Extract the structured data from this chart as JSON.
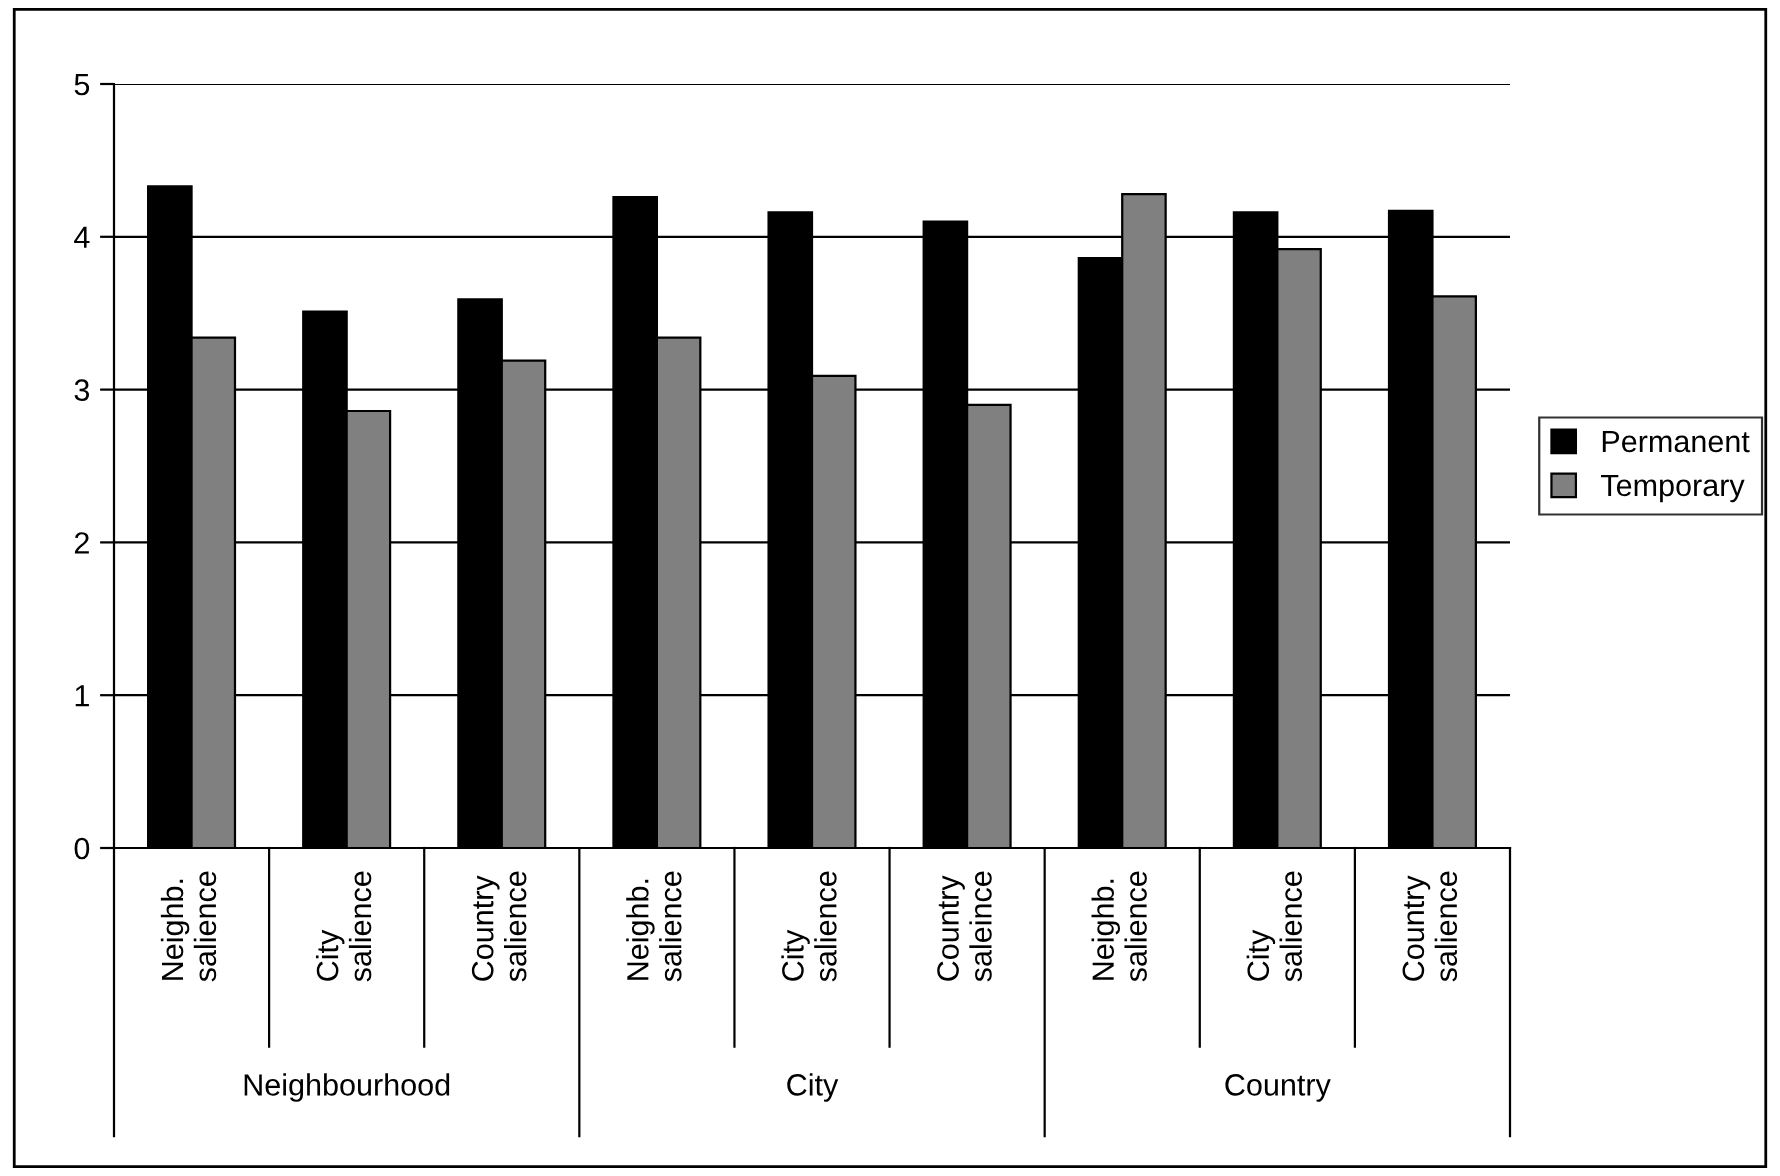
{
  "chart_data": {
    "type": "bar",
    "categories": [
      "Neighb.\nsalience",
      "City\nsalience",
      "Country\nsalience",
      "Neighb.\nsalience",
      "City\nsalience",
      "Country\nsaleince",
      "Neighb.\nsalience",
      "City\nsalience",
      "Country\nsalience"
    ],
    "annotations": [
      "Neighbourhood",
      "City",
      "Country"
    ],
    "series": [
      {
        "name": "Permanent",
        "color": "#000000",
        "values": [
          4.33,
          3.51,
          3.59,
          4.26,
          4.16,
          4.1,
          3.86,
          4.16,
          4.17
        ]
      },
      {
        "name": "Temporary",
        "color": "#808080",
        "values": [
          3.34,
          2.86,
          3.19,
          3.34,
          3.09,
          2.9,
          4.28,
          3.92,
          3.61
        ]
      }
    ],
    "ylim": [
      0,
      5
    ],
    "yticks": [
      0,
      1,
      2,
      3,
      4,
      5
    ],
    "grid": "y",
    "legend": "right"
  }
}
